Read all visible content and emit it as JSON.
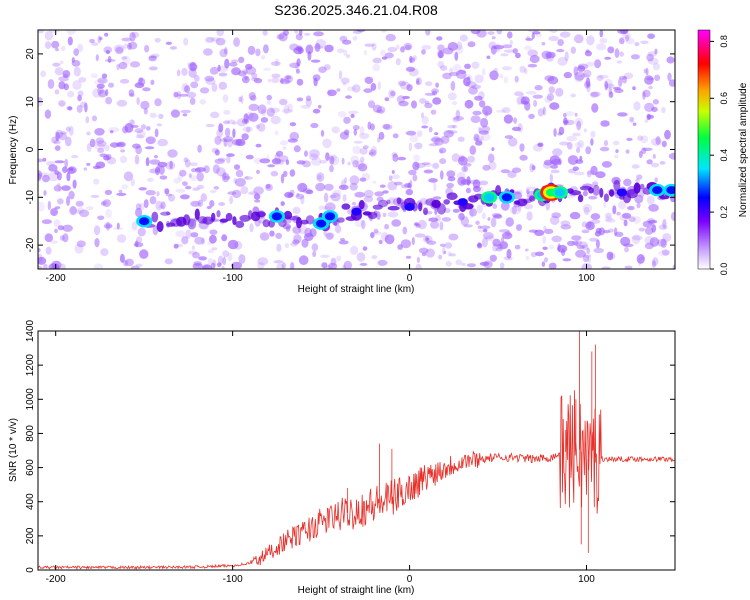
{
  "title": "S236.2025.346.21.04.R08",
  "colors": {
    "snr_line": "#e8302a",
    "noise_speckle": "#9b59ff",
    "signal_band": "#5b00d9",
    "axis": "#000000"
  },
  "chart_data": [
    {
      "type": "heatmap",
      "title": "S236.2025.346.21.04.R08",
      "xlabel": "Height of straight line (km)",
      "ylabel": "Frequency (Hz)",
      "xlim": [
        -210,
        150
      ],
      "ylim": [
        -25,
        25
      ],
      "x_ticks": [
        -200,
        -100,
        0,
        100
      ],
      "x_tick_labels": [
        "-200",
        "-100",
        "0",
        "100"
      ],
      "y_ticks": [
        -20,
        -10,
        0,
        10,
        20
      ],
      "y_tick_labels": [
        "-20",
        "-10",
        "0",
        "10",
        "20"
      ],
      "grid": false,
      "colorbar": {
        "label": "Normalized spectral amplitude",
        "range": [
          0.0,
          0.84
        ],
        "ticks": [
          0.0,
          0.2,
          0.4,
          0.6,
          0.8
        ],
        "tick_labels": [
          "0.0",
          "0.2",
          "0.4",
          "0.6",
          "0.8"
        ],
        "colormap": "rainbow (white-violet-blue-cyan-green-yellow-orange-red-magenta)"
      },
      "signal_band": {
        "points": [
          {
            "x": -150,
            "y": -15,
            "amplitude": 0.3
          },
          {
            "x": -75,
            "y": -14,
            "amplitude": 0.25
          },
          {
            "x": -50,
            "y": -15.5,
            "amplitude": 0.25
          },
          {
            "x": -45,
            "y": -14,
            "amplitude": 0.3
          },
          {
            "x": -30,
            "y": -13,
            "amplitude": 0.2
          },
          {
            "x": 0,
            "y": -12,
            "amplitude": 0.15
          },
          {
            "x": 30,
            "y": -11,
            "amplitude": 0.2
          },
          {
            "x": 45,
            "y": -10,
            "amplitude": 0.5
          },
          {
            "x": 55,
            "y": -10,
            "amplitude": 0.35
          },
          {
            "x": 75,
            "y": -9.5,
            "amplitude": 0.45
          },
          {
            "x": 80,
            "y": -9,
            "amplitude": 0.84
          },
          {
            "x": 85,
            "y": -9,
            "amplitude": 0.45
          },
          {
            "x": 120,
            "y": -9,
            "amplitude": 0.15
          },
          {
            "x": 140,
            "y": -8.5,
            "amplitude": 0.4
          },
          {
            "x": 148,
            "y": -8.5,
            "amplitude": 0.3
          }
        ]
      }
    },
    {
      "type": "line",
      "xlabel": "Height of straight line (km)",
      "ylabel": "SNR (10 * v/v)",
      "xlim": [
        -210,
        150
      ],
      "ylim": [
        0,
        1400
      ],
      "x_ticks": [
        -200,
        -100,
        0,
        100
      ],
      "x_tick_labels": [
        "-200",
        "-100",
        "0",
        "100"
      ],
      "y_ticks": [
        0,
        200,
        400,
        600,
        800,
        1000,
        1200,
        1400
      ],
      "y_tick_labels": [
        "0",
        "200",
        "400",
        "600",
        "800",
        "1000",
        "1200",
        "1400"
      ],
      "grid": false,
      "series": [
        {
          "color": "#e8302a",
          "x": [
            -210,
            -180,
            -150,
            -120,
            -100,
            -90,
            -85,
            -80,
            -70,
            -60,
            -50,
            -40,
            -30,
            -20,
            -10,
            0,
            10,
            20,
            30,
            40,
            50,
            60,
            70,
            80,
            85,
            90,
            95,
            100,
            105,
            110,
            120,
            130,
            140,
            150
          ],
          "values": [
            15,
            15,
            15,
            18,
            25,
            40,
            60,
            100,
            170,
            220,
            280,
            320,
            350,
            380,
            420,
            480,
            550,
            600,
            640,
            650,
            660,
            660,
            650,
            660,
            680,
            700,
            720,
            650,
            660,
            650,
            650,
            650,
            650,
            650
          ]
        }
      ],
      "spikes": [
        {
          "x": -35,
          "y": 480
        },
        {
          "x": -17,
          "y": 740
        },
        {
          "x": -10,
          "y": 710
        },
        {
          "x": 88,
          "y": 820
        },
        {
          "x": 94,
          "y": 1000
        },
        {
          "x": 96,
          "y": 1400
        },
        {
          "x": 97,
          "y": 150
        },
        {
          "x": 101,
          "y": 100
        },
        {
          "x": 103,
          "y": 1280
        },
        {
          "x": 105,
          "y": 1320
        }
      ]
    }
  ]
}
